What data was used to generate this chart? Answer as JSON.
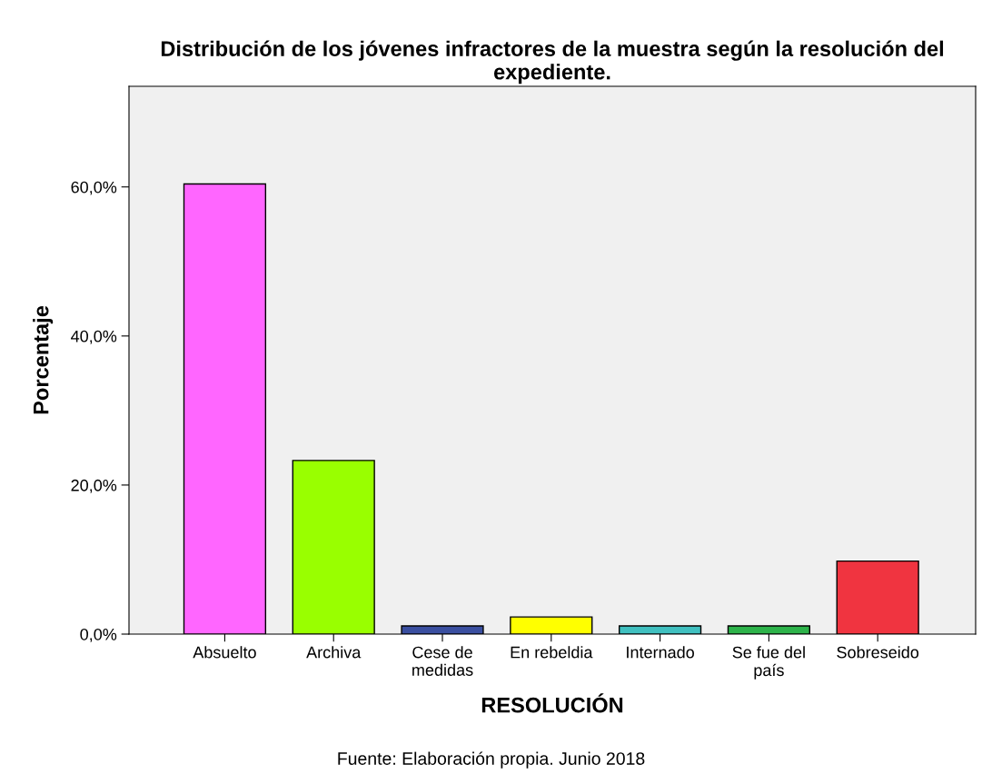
{
  "chart_data": {
    "type": "bar",
    "title": "Distribución de los jóvenes infractores de la muestra según la resolución del expediente.",
    "xlabel": "RESOLUCIÓN",
    "ylabel": "Porcentaje",
    "categories": [
      "Absuelto",
      "Archiva",
      "Cese de\nmedidas",
      "En rebeldia",
      "Internado",
      "Se fue del\npaís",
      "Sobreseido"
    ],
    "values": [
      60.4,
      23.3,
      1.1,
      2.3,
      1.1,
      1.1,
      9.8
    ],
    "colors": [
      "#ff66ff",
      "#99ff00",
      "#3a4fa0",
      "#ffff00",
      "#40c0c0",
      "#2db34a",
      "#f03440"
    ],
    "ylim": [
      0,
      73.5
    ],
    "yticks": [
      {
        "value": 0,
        "label": "0,0%"
      },
      {
        "value": 20,
        "label": "20,0%"
      },
      {
        "value": 40,
        "label": "40,0%"
      },
      {
        "value": 60,
        "label": "60,0%"
      }
    ],
    "grid": false,
    "annotations": [
      "Fuente: Elaboración propia. Junio 2018"
    ]
  }
}
